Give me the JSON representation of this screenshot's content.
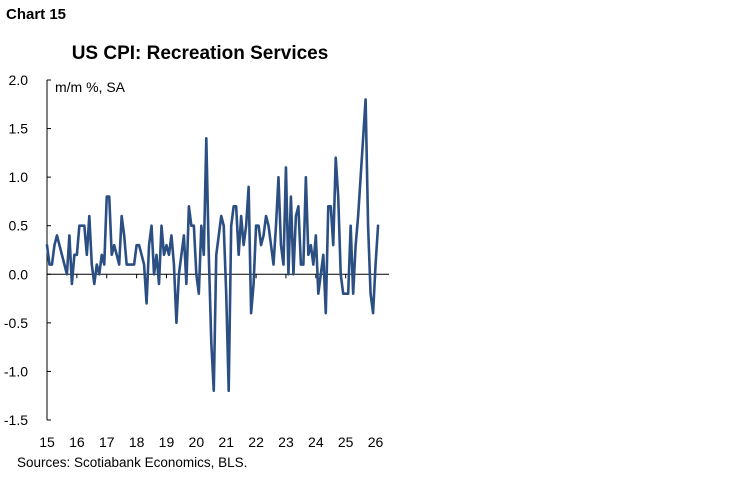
{
  "header": {
    "chart_label": "Chart 15",
    "source": "Sources: Scotiabank Economics, BLS."
  },
  "colors": {
    "line": "#2b4f82",
    "axis": "#000000"
  },
  "chart_data": {
    "type": "line",
    "title": "US CPI: Recreation Services",
    "ylabel": "m/m %, SA",
    "xlabel": "",
    "ylim": [
      -1.5,
      2.0
    ],
    "yticks": [
      "2.0",
      "1.5",
      "1.0",
      "0.5",
      "0.0",
      "-0.5",
      "-1.0",
      "-1.5"
    ],
    "yticks_values": [
      2.0,
      1.5,
      1.0,
      0.5,
      0.0,
      -0.5,
      -1.0,
      -1.5
    ],
    "xticks": [
      "15",
      "16",
      "17",
      "18",
      "19",
      "20",
      "21",
      "22",
      "23",
      "24",
      "25",
      "26"
    ],
    "xticks_values": [
      2015,
      2016,
      2017,
      2018,
      2019,
      2020,
      2021,
      2022,
      2023,
      2024,
      2025,
      2026
    ],
    "xlim": [
      2015.0,
      2026.45
    ],
    "grid": false,
    "series": [
      {
        "name": "",
        "start": "2015-01",
        "frequency": "monthly",
        "values": [
          0.3,
          0.1,
          0.1,
          0.3,
          0.4,
          0.3,
          0.2,
          0.1,
          0.0,
          0.4,
          -0.1,
          0.2,
          0.2,
          0.5,
          0.5,
          0.5,
          0.2,
          0.6,
          0.1,
          -0.1,
          0.1,
          0.0,
          0.2,
          0.1,
          0.8,
          0.8,
          0.2,
          0.3,
          0.2,
          0.1,
          0.6,
          0.4,
          0.1,
          0.1,
          0.1,
          0.1,
          0.3,
          0.3,
          0.2,
          0.1,
          -0.3,
          0.3,
          0.5,
          0.0,
          0.2,
          -0.1,
          0.5,
          0.2,
          0.3,
          0.2,
          0.4,
          0.1,
          -0.5,
          0.0,
          0.2,
          0.4,
          -0.1,
          0.7,
          0.5,
          0.5,
          0.0,
          -0.2,
          0.5,
          0.2,
          1.4,
          0.2,
          -0.7,
          -1.2,
          0.2,
          0.4,
          0.6,
          0.5,
          -0.2,
          -1.2,
          0.5,
          0.7,
          0.7,
          0.2,
          0.6,
          0.3,
          0.5,
          0.9,
          -0.4,
          -0.1,
          0.5,
          0.5,
          0.3,
          0.4,
          0.6,
          0.5,
          0.3,
          0.1,
          0.5,
          1.0,
          0.3,
          0.1,
          1.1,
          0.0,
          0.8,
          0.0,
          0.6,
          0.7,
          0.1,
          0.1,
          1.0,
          0.2,
          0.3,
          0.1,
          0.4,
          -0.2,
          0.0,
          0.2,
          -0.4,
          0.7,
          0.7,
          0.3,
          1.2,
          0.8,
          0.0,
          -0.2,
          -0.2,
          -0.2,
          0.5,
          -0.2,
          0.3,
          0.6,
          1.0,
          1.4,
          1.8,
          0.5,
          -0.2,
          -0.4,
          0.1,
          0.5
        ]
      }
    ]
  }
}
